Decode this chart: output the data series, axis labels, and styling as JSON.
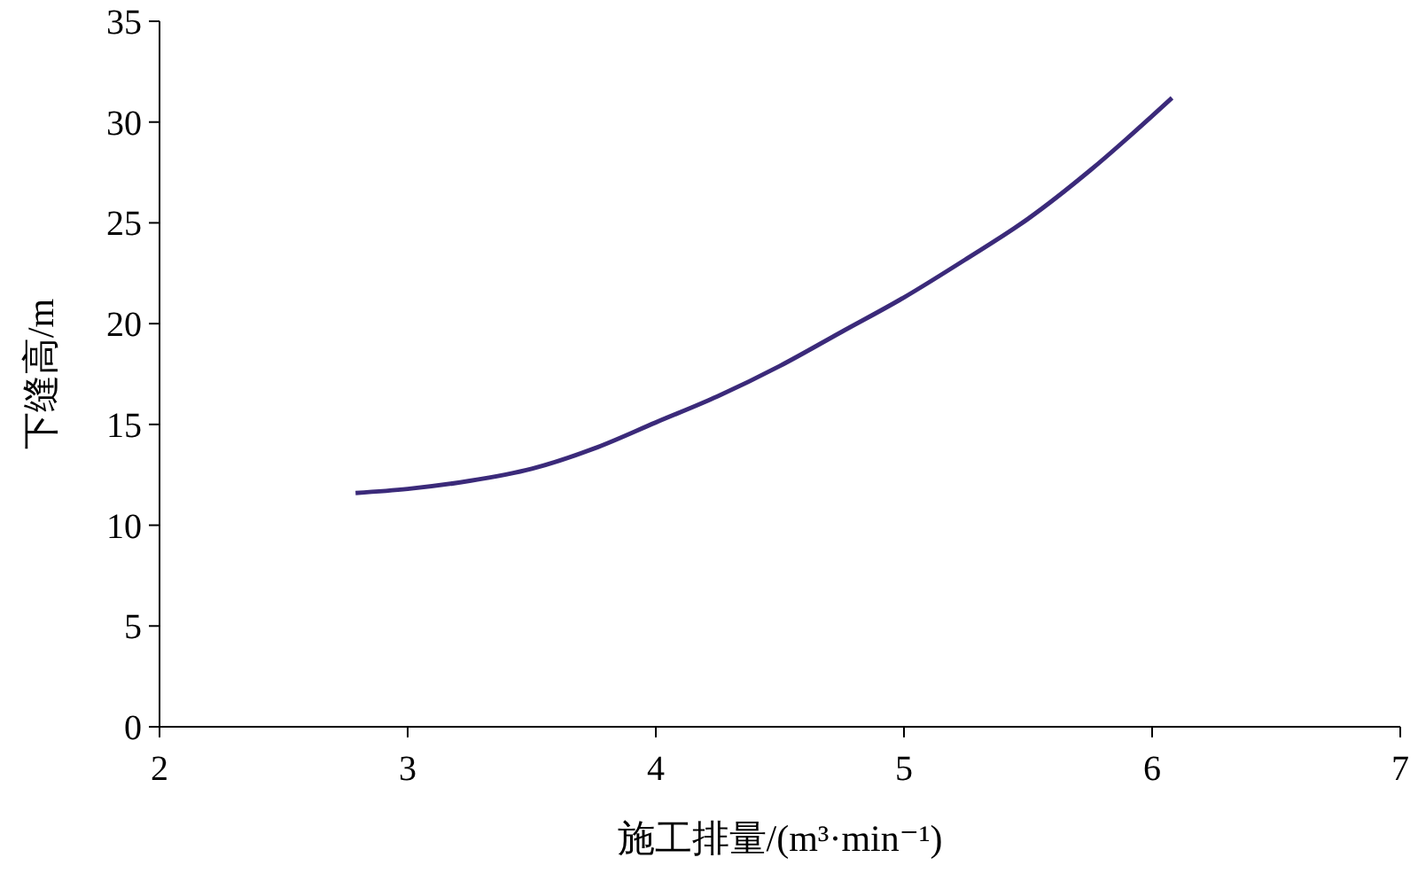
{
  "chart_data": {
    "type": "line",
    "xlabel": "施工排量/(m³·min⁻¹)",
    "ylabel": "下缝高/m",
    "x": [
      2.79,
      3.0,
      3.25,
      3.5,
      3.75,
      4.0,
      4.25,
      4.5,
      4.75,
      5.0,
      5.25,
      5.5,
      5.75,
      6.0,
      6.08
    ],
    "series": [
      {
        "color": "#3b2a7a",
        "values": [
          11.6,
          11.8,
          12.2,
          12.8,
          13.8,
          15.1,
          16.4,
          17.9,
          19.6,
          21.3,
          23.2,
          25.2,
          27.6,
          30.3,
          31.2
        ]
      }
    ],
    "xlim": [
      2,
      7
    ],
    "xticks": [
      2,
      3,
      4,
      5,
      6,
      7
    ],
    "ylim": [
      0,
      35
    ],
    "yticks": [
      0,
      5,
      10,
      15,
      20,
      25,
      30,
      35
    ],
    "marker": "none",
    "line_style": "solid"
  }
}
